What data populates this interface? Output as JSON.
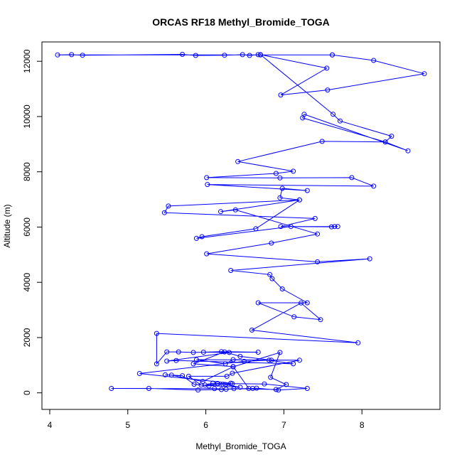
{
  "chart_data": {
    "type": "line",
    "title": "ORCAS RF18 Methyl_Bromide_TOGA",
    "xlabel": "Methyl_Bromide_TOGA",
    "ylabel": "Altitude (m)",
    "xlim": [
      3.9,
      9.0
    ],
    "ylim": [
      -600,
      12700
    ],
    "xticks": [
      4,
      5,
      6,
      7,
      8
    ],
    "yticks": [
      0,
      2000,
      4000,
      6000,
      8000,
      10000,
      12000
    ],
    "grid": false,
    "marker": "open-circle",
    "color": "#0000ff",
    "series": [
      {
        "points": [
          [
            7.62,
            12230
          ],
          [
            4.1,
            12230
          ],
          [
            4.28,
            12240
          ],
          [
            4.42,
            12220
          ],
          [
            5.7,
            12250
          ],
          [
            5.87,
            12210
          ],
          [
            6.24,
            12220
          ],
          [
            6.47,
            12240
          ],
          [
            6.56,
            12210
          ],
          [
            6.67,
            12240
          ],
          [
            6.7,
            12230
          ],
          [
            7.62,
            12230
          ],
          [
            8.15,
            12030
          ],
          [
            8.8,
            11550
          ],
          [
            7.56,
            10960
          ],
          [
            6.96,
            10780
          ],
          [
            7.55,
            11750
          ],
          [
            6.7,
            12240
          ],
          [
            7.63,
            10080
          ],
          [
            7.72,
            9840
          ],
          [
            8.38,
            9290
          ],
          [
            8.3,
            9080
          ],
          [
            8.59,
            8760
          ],
          [
            7.26,
            10080
          ],
          [
            7.24,
            9950
          ],
          [
            8.3,
            9080
          ],
          [
            7.49,
            9100
          ],
          [
            6.41,
            8370
          ],
          [
            7.12,
            8020
          ],
          [
            6.9,
            7940
          ],
          [
            6.01,
            7790
          ],
          [
            6.95,
            7780
          ],
          [
            7.87,
            7790
          ],
          [
            8.15,
            7480
          ],
          [
            6.02,
            7540
          ],
          [
            7.3,
            7320
          ],
          [
            6.98,
            7400
          ],
          [
            6.95,
            7060
          ],
          [
            7.2,
            6980
          ],
          [
            5.52,
            6760
          ],
          [
            5.47,
            6520
          ],
          [
            7.4,
            6310
          ],
          [
            6.96,
            6020
          ],
          [
            7.61,
            6010
          ],
          [
            7.65,
            6020
          ],
          [
            7.69,
            6020
          ],
          [
            7.09,
            6020
          ],
          [
            5.88,
            5590
          ],
          [
            5.95,
            5650
          ],
          [
            6.64,
            5940
          ],
          [
            7.2,
            6980
          ],
          [
            6.19,
            6560
          ],
          [
            6.38,
            6620
          ],
          [
            7.43,
            5750
          ],
          [
            6.84,
            5420
          ],
          [
            6.01,
            5030
          ],
          [
            7.43,
            4740
          ],
          [
            8.1,
            4850
          ],
          [
            6.32,
            4430
          ],
          [
            6.82,
            4280
          ],
          [
            6.85,
            4130
          ],
          [
            6.98,
            3760
          ],
          [
            7.3,
            3260
          ],
          [
            6.67,
            3260
          ],
          [
            7.13,
            2750
          ],
          [
            7.47,
            2650
          ],
          [
            7.22,
            3250
          ],
          [
            6.59,
            2270
          ],
          [
            7.95,
            1810
          ],
          [
            5.37,
            2150
          ],
          [
            5.37,
            1050
          ],
          [
            5.5,
            1480
          ],
          [
            5.65,
            1480
          ],
          [
            5.84,
            1460
          ],
          [
            6.2,
            1490
          ],
          [
            6.67,
            1470
          ],
          [
            5.97,
            1470
          ],
          [
            6.3,
            1460
          ],
          [
            5.5,
            1150
          ],
          [
            5.62,
            1170
          ],
          [
            7.12,
            1050
          ],
          [
            6.81,
            1180
          ],
          [
            6.35,
            1200
          ],
          [
            6.25,
            1050
          ],
          [
            5.88,
            1200
          ],
          [
            7.2,
            1180
          ],
          [
            6.34,
            710
          ],
          [
            6.27,
            600
          ],
          [
            5.78,
            600
          ],
          [
            5.94,
            280
          ],
          [
            6.44,
            200
          ],
          [
            6.22,
            310
          ],
          [
            6.09,
            350
          ],
          [
            5.99,
            280
          ],
          [
            6.15,
            320
          ],
          [
            6.25,
            300
          ],
          [
            6.34,
            330
          ],
          [
            6.75,
            320
          ],
          [
            7.3,
            160
          ],
          [
            6.93,
            100
          ],
          [
            6.65,
            170
          ],
          [
            6.6,
            160
          ],
          [
            5.9,
            100
          ],
          [
            5.27,
            160
          ],
          [
            4.79,
            160
          ],
          [
            6.11,
            150
          ],
          [
            6.26,
            130
          ],
          [
            6.36,
            150
          ],
          [
            6.9,
            120
          ],
          [
            7.03,
            300
          ],
          [
            6.83,
            560
          ],
          [
            6.95,
            1460
          ],
          [
            6.35,
            940
          ],
          [
            5.96,
            410
          ],
          [
            5.56,
            640
          ],
          [
            5.48,
            650
          ],
          [
            5.7,
            620
          ],
          [
            5.85,
            310
          ],
          [
            6.04,
            250
          ],
          [
            6.15,
            340
          ],
          [
            6.32,
            350
          ],
          [
            5.15,
            700
          ],
          [
            6.49,
            1140
          ],
          [
            6.84,
            1180
          ],
          [
            6.44,
            1320
          ],
          [
            6.24,
            1480
          ],
          [
            5.84,
            1050
          ],
          [
            6.35,
            950
          ],
          [
            6.55,
            160
          ],
          [
            6.2,
            120
          ]
        ]
      }
    ]
  }
}
